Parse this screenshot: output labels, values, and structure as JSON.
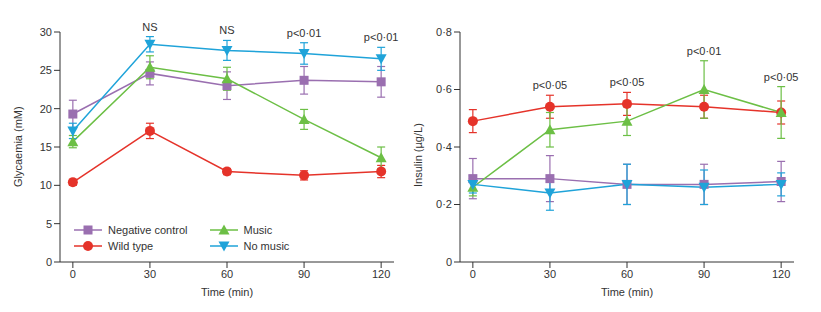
{
  "chart_data": [
    {
      "type": "line",
      "x_label": "Time (min)",
      "y_label": "Glycaemia (mM)",
      "x": [
        0,
        30,
        60,
        90,
        120
      ],
      "xlim": [
        -5,
        125
      ],
      "xticks": [
        0,
        30,
        60,
        90,
        120
      ],
      "ylim": [
        0,
        30
      ],
      "yticks": [
        0,
        5,
        10,
        15,
        20,
        25,
        30
      ],
      "grid": false,
      "legend": "lower left",
      "series": [
        {
          "name": "Negative control",
          "color": "#9a6fb0",
          "marker": "square",
          "line_style": "solid",
          "values": [
            19.3,
            24.6,
            23.0,
            23.7,
            23.5
          ],
          "error": [
            1.8,
            1.5,
            1.8,
            1.8,
            2.0
          ]
        },
        {
          "name": "Wild type",
          "color": "#e5332a",
          "marker": "circle",
          "line_style": "solid",
          "values": [
            10.4,
            17.1,
            11.8,
            11.3,
            11.8
          ],
          "error": [
            0.4,
            1.0,
            0.4,
            0.6,
            0.8
          ]
        },
        {
          "name": "Music",
          "color": "#6cbf45",
          "marker": "triangle",
          "line_style": "solid",
          "values": [
            15.7,
            25.4,
            23.9,
            18.6,
            13.6
          ],
          "error": [
            0.8,
            1.5,
            1.5,
            1.3,
            1.4
          ]
        },
        {
          "name": "No music",
          "color": "#1fa3d9",
          "marker": "triangle-down",
          "line_style": "solid",
          "values": [
            17.1,
            28.4,
            27.6,
            27.2,
            26.5
          ],
          "error": [
            1.0,
            1.0,
            1.3,
            1.4,
            1.5
          ]
        }
      ],
      "annotations": [
        {
          "x": 30,
          "text": "NS"
        },
        {
          "x": 60,
          "text": "NS"
        },
        {
          "x": 90,
          "text": "p<0·01"
        },
        {
          "x": 120,
          "text": "p<0·01"
        }
      ]
    },
    {
      "type": "line",
      "x_label": "Time (min)",
      "y_label": "Insulin (µg/L)",
      "x": [
        0,
        30,
        60,
        90,
        120
      ],
      "xlim": [
        -5,
        125
      ],
      "xticks": [
        0,
        30,
        60,
        90,
        120
      ],
      "ylim": [
        0,
        0.8
      ],
      "yticks": [
        0,
        {
          "value": 0.2,
          "label": "0·2"
        },
        {
          "value": 0.4,
          "label": "0·4"
        },
        {
          "value": 0.6,
          "label": "0·6"
        },
        {
          "value": 0.8,
          "label": "0·8"
        }
      ],
      "grid": false,
      "series": [
        {
          "name": "Negative control",
          "color": "#9a6fb0",
          "marker": "square",
          "line_style": "solid",
          "values": [
            0.29,
            0.29,
            0.27,
            0.27,
            0.28
          ],
          "error": [
            0.07,
            0.08,
            0.07,
            0.07,
            0.07
          ]
        },
        {
          "name": "Wild type",
          "color": "#e5332a",
          "marker": "circle",
          "line_style": "solid",
          "values": [
            0.49,
            0.54,
            0.55,
            0.54,
            0.52
          ],
          "error": [
            0.04,
            0.04,
            0.04,
            0.04,
            0.04
          ]
        },
        {
          "name": "Music",
          "color": "#6cbf45",
          "marker": "triangle",
          "line_style": "solid",
          "values": [
            0.26,
            0.46,
            0.49,
            0.6,
            0.52
          ],
          "error": [
            0.03,
            0.06,
            0.05,
            0.1,
            0.09
          ]
        },
        {
          "name": "No music",
          "color": "#1fa3d9",
          "marker": "triangle-down",
          "line_style": "solid",
          "values": [
            0.27,
            0.24,
            0.27,
            0.26,
            0.27
          ],
          "error": [
            0.03,
            0.06,
            0.07,
            0.06,
            0.04
          ]
        }
      ],
      "annotations": [
        {
          "x": 30,
          "text": "p<0·05"
        },
        {
          "x": 60,
          "text": "p<0·05"
        },
        {
          "x": 90,
          "text": "p<0·01"
        },
        {
          "x": 120,
          "text": "p<0·05"
        }
      ]
    }
  ]
}
